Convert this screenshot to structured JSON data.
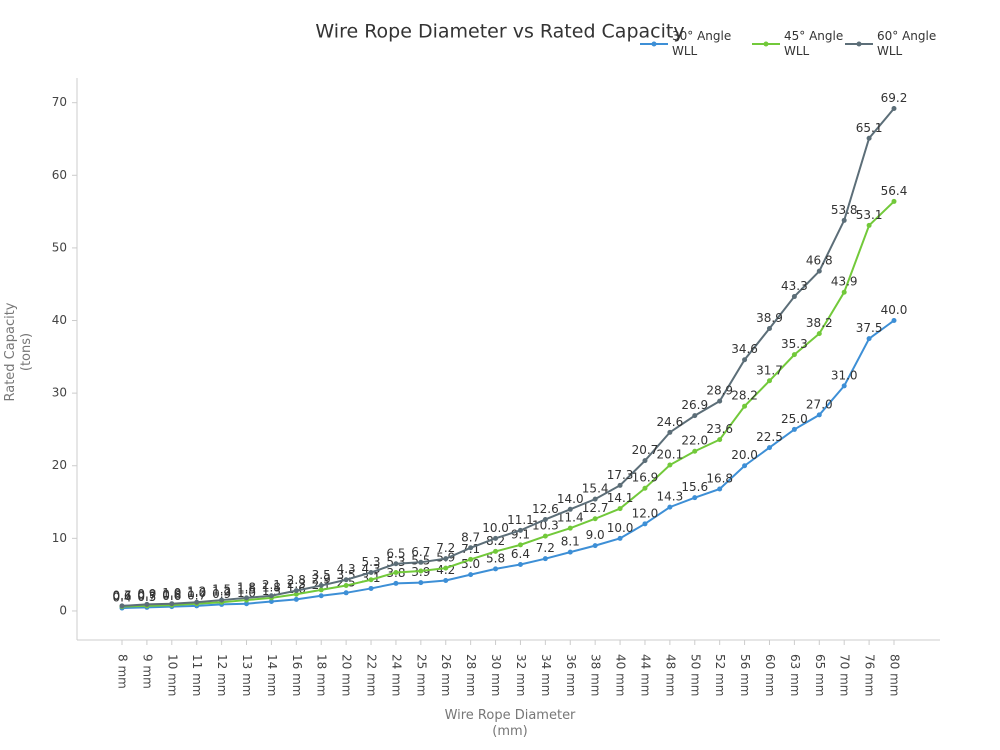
{
  "chart_data": {
    "type": "line",
    "title": "Wire Rope Diameter vs Rated Capacity",
    "x_label": "Wire Rope Diameter (mm)",
    "y_label": "Rated Capacity (tons)",
    "categories": [
      "8 mm",
      "9 mm",
      "10 mm",
      "11 mm",
      "12 mm",
      "13 mm",
      "14 mm",
      "16 mm",
      "18 mm",
      "20 mm",
      "22 mm",
      "24 mm",
      "25 mm",
      "26 mm",
      "28 mm",
      "30 mm",
      "32 mm",
      "34 mm",
      "36 mm",
      "38 mm",
      "40 mm",
      "44 mm",
      "48 mm",
      "50 mm",
      "52 mm",
      "56 mm",
      "60 mm",
      "63 mm",
      "65 mm",
      "70 mm",
      "76 mm",
      "80 mm"
    ],
    "series": [
      {
        "name": "30° Angle WLL",
        "color": "#3d8fd6",
        "values": [
          0.4,
          0.5,
          0.6,
          0.7,
          0.9,
          1.0,
          1.3,
          1.6,
          2.1,
          2.5,
          3.1,
          3.8,
          3.9,
          4.2,
          5.0,
          5.8,
          6.4,
          7.2,
          8.1,
          9.0,
          10.0,
          12.0,
          14.3,
          15.6,
          16.8,
          20.0,
          22.5,
          25.0,
          27.0,
          31.0,
          37.5,
          40.0
        ],
        "value_labels": [
          "0.4",
          "0.5",
          "0.6",
          "0.7",
          "0.9",
          "1.0",
          "1.3",
          "1.6",
          "2.1",
          "2.5",
          "3.1",
          "3.8",
          "3.9",
          "4.2",
          "5.0",
          "5.8",
          "6.4",
          "7.2",
          "8.1",
          "9.0",
          "10.0",
          "12.0",
          "14.3",
          "15.6",
          "16.8",
          "20.0",
          "22.5",
          "25.0",
          "27.0",
          "31.0",
          "37.5",
          "40.0"
        ]
      },
      {
        "name": "45° Angle WLL",
        "color": "#72c93a",
        "values": [
          0.6,
          0.7,
          0.8,
          1.0,
          1.2,
          1.5,
          1.8,
          2.3,
          2.9,
          3.5,
          4.3,
          5.3,
          5.5,
          5.9,
          7.1,
          8.2,
          9.1,
          10.3,
          11.4,
          12.7,
          14.1,
          16.9,
          20.1,
          22.0,
          23.6,
          28.2,
          31.7,
          35.3,
          38.2,
          43.9,
          53.1,
          56.4
        ],
        "value_labels": [
          "0.6",
          "0.7",
          "0.8",
          "1.0",
          "1.2",
          "1.5",
          "1.8",
          "2.3",
          "2.9",
          "3.5",
          "4.3",
          "5.3",
          "5.5",
          "5.9",
          "7.1",
          "8.2",
          "9.1",
          "10.3",
          "11.4",
          "12.7",
          "14.1",
          "16.9",
          "20.1",
          "22.0",
          "23.6",
          "28.2",
          "31.7",
          "35.3",
          "38.2",
          "43.9",
          "53.1",
          "56.4"
        ]
      },
      {
        "name": "60° Angle WLL",
        "color": "#5c6e78",
        "values": [
          0.7,
          0.9,
          1.0,
          1.2,
          1.5,
          1.8,
          2.1,
          2.8,
          3.5,
          4.3,
          5.3,
          6.5,
          6.7,
          7.2,
          8.7,
          10.0,
          11.1,
          12.6,
          14.0,
          15.4,
          17.3,
          20.7,
          24.6,
          26.9,
          28.9,
          34.6,
          38.9,
          43.3,
          46.8,
          53.8,
          65.1,
          69.2
        ],
        "value_labels": [
          "0.7",
          "0.9",
          "1.0",
          "1.2",
          "1.5",
          "1.8",
          "2.1",
          "2.8",
          "3.5",
          "4.3",
          "5.3",
          "6.5",
          "6.7",
          "7.2",
          "8.7",
          "10.0",
          "11.1",
          "12.6",
          "14.0",
          "15.4",
          "17.3",
          "20.7",
          "24.6",
          "26.9",
          "28.9",
          "34.6",
          "38.9",
          "43.3",
          "46.8",
          "53.8",
          "65.1",
          "69.2"
        ]
      }
    ],
    "ylim": [
      -4,
      73.4
    ],
    "yticks": [
      0,
      10,
      20,
      30,
      40,
      50,
      60,
      70
    ],
    "grid": false,
    "legend": "top-right"
  }
}
